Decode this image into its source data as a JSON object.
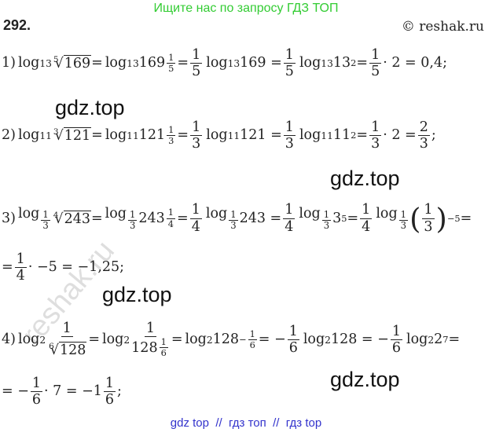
{
  "header": {
    "banner": "Ищите нас по запросу ГДЗ ТОП",
    "number": "292.",
    "copyright": "© reshak.ru"
  },
  "lines": [
    [
      "1) ",
      {
        "fn": "log",
        "sub": "13"
      },
      {
        "root": [
          "5",
          "169"
        ]
      },
      " = ",
      {
        "fn": "log",
        "sub": "13"
      },
      {
        "pow": [
          "169",
          {
            "frac": [
              "1",
              "5"
            ]
          }
        ]
      },
      " = ",
      {
        "frac": [
          "1",
          "5"
        ]
      },
      {
        "fn": "log",
        "sub": "13"
      },
      " 169 = ",
      {
        "frac": [
          "1",
          "5"
        ]
      },
      {
        "fn": "log",
        "sub": "13"
      },
      {
        "pow": [
          " 13",
          "2"
        ]
      },
      " = ",
      {
        "frac": [
          "1",
          "5"
        ]
      },
      " · 2 = 0,4;"
    ],
    [
      "2) ",
      {
        "fn": "log",
        "sub": "11"
      },
      {
        "root": [
          "3",
          "121"
        ]
      },
      " = ",
      {
        "fn": "log",
        "sub": "11"
      },
      {
        "pow": [
          " 121",
          {
            "frac": [
              "1",
              "3"
            ]
          }
        ]
      },
      " = ",
      {
        "frac": [
          "1",
          "3"
        ]
      },
      {
        "fn": "log",
        "sub": "11"
      },
      " 121 = ",
      {
        "frac": [
          "1",
          "3"
        ]
      },
      {
        "fn": "log",
        "sub": "11"
      },
      {
        "pow": [
          " 11",
          "2"
        ]
      },
      " = ",
      {
        "frac": [
          "1",
          "3"
        ]
      },
      " · 2 = ",
      {
        "frac": [
          "2",
          "3"
        ]
      },
      ";"
    ],
    [
      "3) ",
      {
        "fn": "log",
        "sub": {
          "frac": [
            "1",
            "3"
          ]
        }
      },
      {
        "root": [
          "4",
          "243"
        ]
      },
      " = ",
      {
        "fn": "log",
        "sub": {
          "frac": [
            "1",
            "3"
          ]
        }
      },
      {
        "pow": [
          " 243",
          {
            "frac": [
              "1",
              "4"
            ]
          }
        ]
      },
      " = ",
      {
        "frac": [
          "1",
          "4"
        ]
      },
      {
        "fn": "log",
        "sub": {
          "frac": [
            "1",
            "3"
          ]
        }
      },
      " 243 = ",
      {
        "frac": [
          "1",
          "4"
        ]
      },
      {
        "fn": "log",
        "sub": {
          "frac": [
            "1",
            "3"
          ]
        }
      },
      {
        "pow": [
          " 3",
          "5"
        ]
      },
      " = ",
      {
        "frac": [
          "1",
          "4"
        ]
      },
      {
        "fn": "log",
        "sub": {
          "frac": [
            "1",
            "3"
          ]
        }
      },
      {
        "pow": [
          {
            "paren": {
              "frac": [
                "1",
                "3"
              ]
            }
          },
          "−5"
        ]
      },
      "  ="
    ],
    [
      "= ",
      {
        "frac": [
          "1",
          "4"
        ]
      },
      " · −5 = −1,25;"
    ],
    [
      "4) ",
      {
        "fn": "log",
        "sub": "2"
      },
      {
        "frac": [
          "1",
          {
            "root": [
              "6",
              "128"
            ]
          }
        ]
      },
      " = ",
      {
        "fn": "log",
        "sub": "2"
      },
      {
        "frac": [
          "1",
          {
            "pow": [
              "128",
              {
                "frac": [
                  "1",
                  "6"
                ]
              }
            ]
          }
        ]
      },
      " = ",
      {
        "fn": "log",
        "sub": "2"
      },
      {
        "pow": [
          " 128",
          [
            "−",
            {
              "frac": [
                "1",
                "6"
              ]
            }
          ]
        ]
      },
      " = −",
      {
        "frac": [
          "1",
          "6"
        ]
      },
      {
        "fn": "log",
        "sub": "2"
      },
      " 128 = −",
      {
        "frac": [
          "1",
          "6"
        ]
      },
      {
        "fn": "log",
        "sub": "2"
      },
      {
        "pow": [
          " 2",
          "7"
        ]
      },
      " ="
    ],
    [
      "= −",
      {
        "frac": [
          "1",
          "6"
        ]
      },
      " · 7 = −1",
      {
        "frac": [
          "1",
          "6"
        ]
      },
      ";"
    ]
  ],
  "watermarks": [
    "gdz.top",
    "gdz.top",
    "gdz.top",
    "gdz.top"
  ],
  "stamp": "reshak.ru",
  "footer": "gdz top  //  гдз топ  //  гдз top"
}
